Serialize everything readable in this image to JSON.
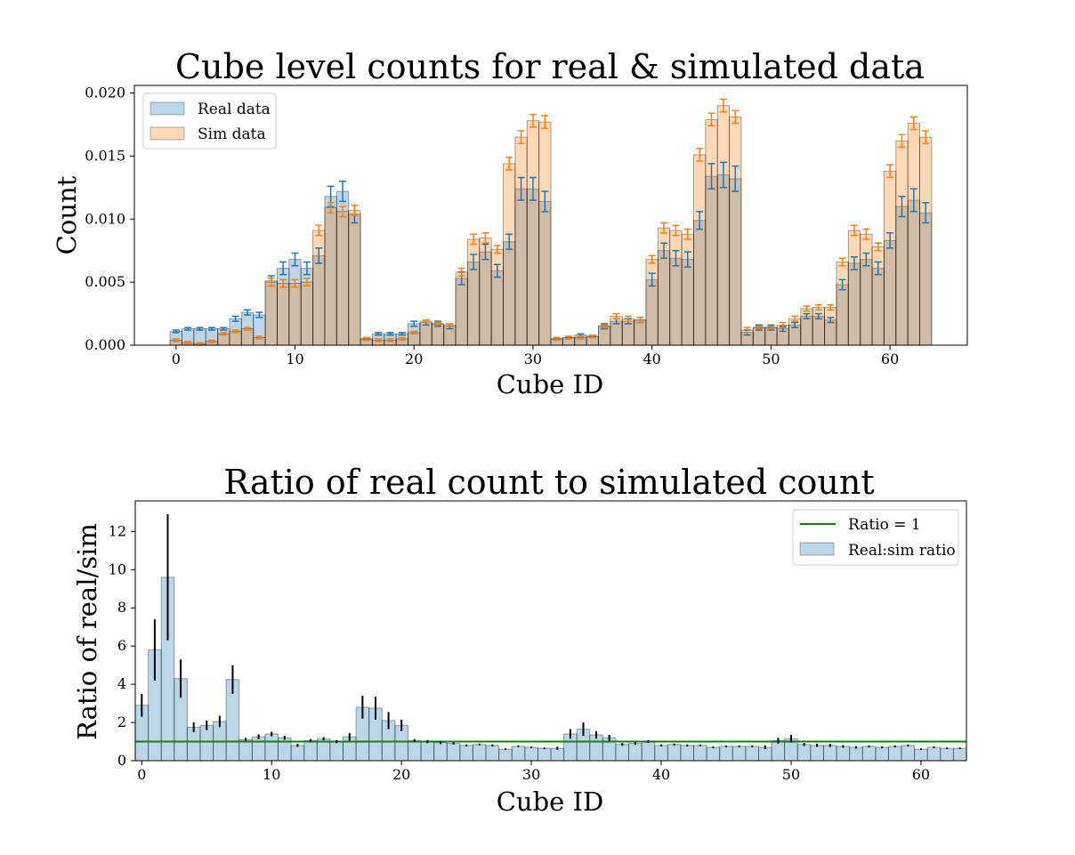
{
  "chart_data": [
    {
      "type": "bar",
      "title": "Cube level counts for real & simulated data",
      "xlabel": "Cube ID",
      "ylabel": "Count",
      "xlim": [
        -3.5,
        66.5
      ],
      "ylim": [
        0,
        0.0206
      ],
      "xticks": [
        0,
        10,
        20,
        30,
        40,
        50,
        60
      ],
      "yticks": [
        0.0,
        0.005,
        0.01,
        0.015,
        0.02
      ],
      "ytick_labels": [
        "0.000",
        "0.005",
        "0.010",
        "0.015",
        "0.020"
      ],
      "legend_position": "top-left",
      "x": [
        0,
        1,
        2,
        3,
        4,
        5,
        6,
        7,
        8,
        9,
        10,
        11,
        12,
        13,
        14,
        15,
        16,
        17,
        18,
        19,
        20,
        21,
        22,
        23,
        24,
        25,
        26,
        27,
        28,
        29,
        30,
        31,
        32,
        33,
        34,
        35,
        36,
        37,
        38,
        39,
        40,
        41,
        42,
        43,
        44,
        45,
        46,
        47,
        48,
        49,
        50,
        51,
        52,
        53,
        54,
        55,
        56,
        57,
        58,
        59,
        60,
        61,
        62,
        63
      ],
      "series": [
        {
          "name": "Real data",
          "color": "#1f77b4",
          "values": [
            0.0011,
            0.0013,
            0.0013,
            0.0013,
            0.0013,
            0.0021,
            0.0026,
            0.0024,
            0.0051,
            0.0061,
            0.0068,
            0.0061,
            0.0071,
            0.0118,
            0.0122,
            0.0104,
            0.0005,
            0.0009,
            0.0009,
            0.0009,
            0.0017,
            0.0018,
            0.0017,
            0.0015,
            0.0053,
            0.0066,
            0.0074,
            0.0059,
            0.0082,
            0.0124,
            0.0124,
            0.0114,
            0.0005,
            0.0006,
            0.0008,
            0.0007,
            0.0015,
            0.0019,
            0.0019,
            0.002,
            0.0052,
            0.0075,
            0.0069,
            0.0068,
            0.0099,
            0.0134,
            0.0135,
            0.0132,
            0.001,
            0.0014,
            0.0014,
            0.0013,
            0.0016,
            0.0023,
            0.0023,
            0.002,
            0.0048,
            0.0065,
            0.0068,
            0.0061,
            0.0083,
            0.011,
            0.0115,
            0.0105
          ],
          "errors": [
            0.0001,
            0.0001,
            0.0001,
            0.0001,
            0.0001,
            0.0002,
            0.0002,
            0.0002,
            0.0004,
            0.0005,
            0.0005,
            0.0005,
            0.0006,
            0.0008,
            0.0008,
            0.0007,
            0.0001,
            0.0001,
            0.0001,
            0.0001,
            0.0002,
            0.0002,
            0.0002,
            0.0002,
            0.0005,
            0.0006,
            0.0006,
            0.0005,
            0.0006,
            0.0009,
            0.0009,
            0.0008,
            0.0001,
            0.0001,
            0.0001,
            0.0001,
            0.0002,
            0.0002,
            0.0002,
            0.0002,
            0.0005,
            0.0006,
            0.0006,
            0.0006,
            0.0007,
            0.001,
            0.001,
            0.001,
            0.0002,
            0.0002,
            0.0002,
            0.0002,
            0.0002,
            0.0002,
            0.0002,
            0.0002,
            0.0004,
            0.0005,
            0.0005,
            0.0005,
            0.0006,
            0.0008,
            0.0009,
            0.0008
          ]
        },
        {
          "name": "Sim data",
          "color": "#ff7f0e",
          "values": [
            0.0004,
            0.0002,
            0.0001,
            0.0003,
            0.0009,
            0.0011,
            0.0013,
            0.0006,
            0.005,
            0.0049,
            0.0049,
            0.005,
            0.0091,
            0.0109,
            0.0106,
            0.0107,
            0.0005,
            0.0004,
            0.0004,
            0.0005,
            0.001,
            0.0019,
            0.0017,
            0.0016,
            0.0058,
            0.0084,
            0.0085,
            0.0076,
            0.0144,
            0.0165,
            0.0178,
            0.0177,
            0.0005,
            0.0006,
            0.0006,
            0.0007,
            0.0015,
            0.0023,
            0.0021,
            0.002,
            0.0068,
            0.0093,
            0.0091,
            0.0088,
            0.0151,
            0.0179,
            0.019,
            0.0181,
            0.0012,
            0.0014,
            0.0014,
            0.0016,
            0.0021,
            0.0029,
            0.003,
            0.003,
            0.0066,
            0.0091,
            0.0088,
            0.0078,
            0.0138,
            0.0162,
            0.0176,
            0.0165
          ],
          "errors": [
            0.0001,
            0.0001,
            0.0001,
            0.0001,
            0.0001,
            0.0001,
            0.0001,
            0.0001,
            0.0003,
            0.0003,
            0.0003,
            0.0003,
            0.0004,
            0.0004,
            0.0004,
            0.0004,
            0.0001,
            0.0001,
            0.0001,
            0.0001,
            0.0001,
            0.0001,
            0.0001,
            0.0001,
            0.0003,
            0.0004,
            0.0004,
            0.0003,
            0.0005,
            0.0005,
            0.0005,
            0.0005,
            0.0001,
            0.0001,
            0.0001,
            0.0001,
            0.0001,
            0.0002,
            0.0002,
            0.0002,
            0.0003,
            0.0004,
            0.0004,
            0.0004,
            0.0005,
            0.0005,
            0.0005,
            0.0005,
            0.0002,
            0.0001,
            0.0001,
            0.0002,
            0.0002,
            0.0002,
            0.0002,
            0.0002,
            0.0003,
            0.0004,
            0.0004,
            0.0003,
            0.0005,
            0.0005,
            0.0005,
            0.0005
          ]
        }
      ]
    },
    {
      "type": "bar",
      "title": "Ratio of real count to simulated count",
      "xlabel": "Cube ID",
      "ylabel": "Ratio of real/sim",
      "xlim": [
        -0.5,
        63.5
      ],
      "ylim": [
        0,
        13.6
      ],
      "xticks": [
        0,
        10,
        20,
        30,
        40,
        50,
        60
      ],
      "yticks": [
        0,
        2,
        4,
        6,
        8,
        10,
        12
      ],
      "legend_position": "top-right",
      "reference_line": {
        "name": "Ratio = 1",
        "y": 1,
        "color": "#008000"
      },
      "x": [
        0,
        1,
        2,
        3,
        4,
        5,
        6,
        7,
        8,
        9,
        10,
        11,
        12,
        13,
        14,
        15,
        16,
        17,
        18,
        19,
        20,
        21,
        22,
        23,
        24,
        25,
        26,
        27,
        28,
        29,
        30,
        31,
        32,
        33,
        34,
        35,
        36,
        37,
        38,
        39,
        40,
        41,
        42,
        43,
        44,
        45,
        46,
        47,
        48,
        49,
        50,
        51,
        52,
        53,
        54,
        55,
        56,
        57,
        58,
        59,
        60,
        61,
        62,
        63
      ],
      "series": [
        {
          "name": "Real:sim ratio",
          "color": "#1f77b4",
          "values": [
            2.9,
            5.8,
            9.6,
            4.3,
            1.75,
            1.85,
            2.05,
            4.25,
            1.1,
            1.25,
            1.4,
            1.2,
            0.8,
            1.05,
            1.15,
            1.0,
            1.25,
            2.8,
            2.75,
            2.1,
            1.85,
            1.05,
            1.0,
            0.95,
            0.9,
            0.8,
            0.85,
            0.8,
            0.6,
            0.75,
            0.7,
            0.65,
            0.65,
            1.4,
            1.65,
            1.35,
            1.2,
            0.85,
            0.9,
            1.0,
            0.8,
            0.85,
            0.8,
            0.8,
            0.7,
            0.75,
            0.75,
            0.75,
            0.7,
            1.05,
            1.15,
            0.85,
            0.8,
            0.8,
            0.75,
            0.7,
            0.75,
            0.7,
            0.75,
            0.8,
            0.6,
            0.7,
            0.65,
            0.65
          ],
          "errors": [
            0.6,
            1.6,
            3.3,
            1.0,
            0.25,
            0.25,
            0.3,
            0.75,
            0.1,
            0.12,
            0.12,
            0.1,
            0.08,
            0.08,
            0.08,
            0.08,
            0.2,
            0.6,
            0.6,
            0.45,
            0.3,
            0.08,
            0.08,
            0.08,
            0.06,
            0.05,
            0.05,
            0.05,
            0.04,
            0.04,
            0.04,
            0.04,
            0.08,
            0.25,
            0.35,
            0.2,
            0.15,
            0.07,
            0.07,
            0.07,
            0.05,
            0.05,
            0.05,
            0.05,
            0.04,
            0.04,
            0.04,
            0.04,
            0.1,
            0.15,
            0.2,
            0.08,
            0.08,
            0.08,
            0.07,
            0.07,
            0.05,
            0.05,
            0.05,
            0.05,
            0.04,
            0.04,
            0.04,
            0.04
          ]
        }
      ]
    }
  ]
}
